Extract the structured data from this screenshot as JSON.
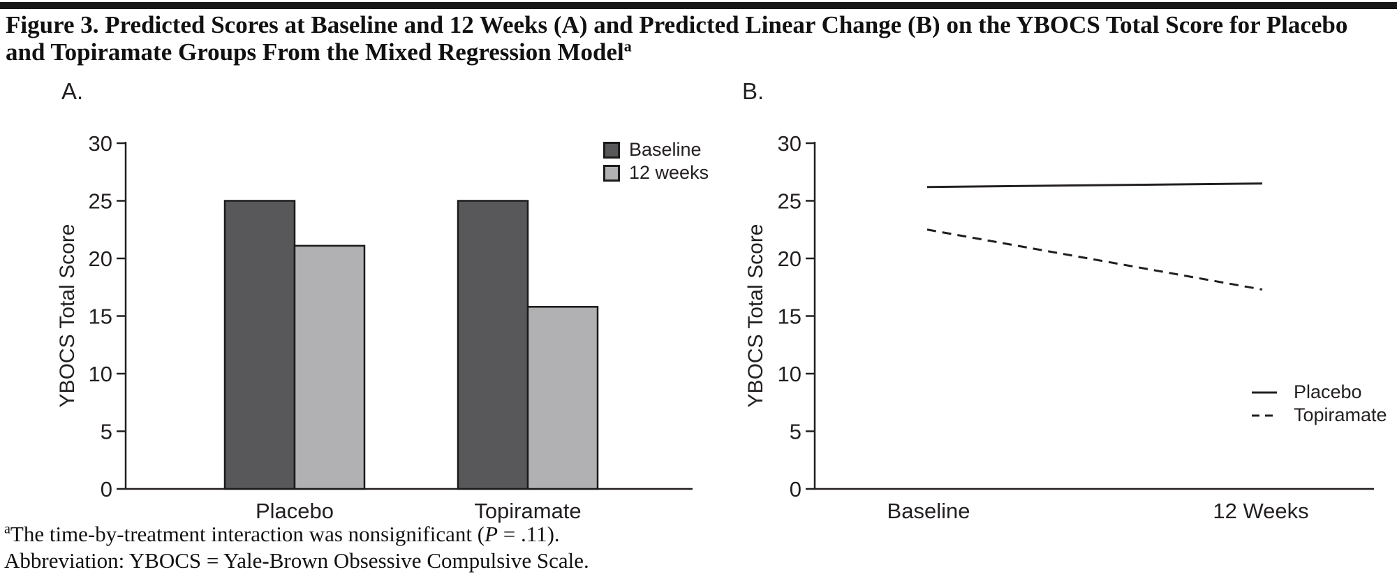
{
  "figure": {
    "title": "Figure 3. Predicted Scores at Baseline and 12 Weeks (A) and Predicted Linear Change (B) on the YBOCS Total Score for Placebo and Topiramate Groups From the Mixed Regression Model",
    "title_superscript": "a"
  },
  "footnotes": {
    "note_marker": "a",
    "note_pre": "The time-by-treatment interaction was nonsignificant (",
    "note_stat": "P",
    "note_post": " = .11).",
    "abbreviation": "Abbreviation: YBOCS = Yale-Brown Obsessive Compulsive Scale."
  },
  "colors": {
    "bar_dark": "#58585a",
    "bar_light": "#b1b1b3",
    "ink": "#231f20"
  },
  "chart_data": [
    {
      "panel_label": "A.",
      "type": "bar",
      "title": "",
      "categories": [
        "Placebo",
        "Topiramate"
      ],
      "series": [
        {
          "name": "Baseline",
          "values": [
            25.0,
            25.0
          ],
          "color": "#58585a"
        },
        {
          "name": "12 weeks",
          "values": [
            21.1,
            15.8
          ],
          "color": "#b1b1b3"
        }
      ],
      "xlabel": "",
      "ylabel": "YBOCS Total Score",
      "ylim": [
        0,
        30
      ],
      "yticks": [
        30,
        25,
        20,
        15,
        10,
        5,
        0
      ],
      "grid": false,
      "legend_position": "top-right"
    },
    {
      "panel_label": "B.",
      "type": "line",
      "title": "",
      "categories": [
        "Baseline",
        "12 Weeks"
      ],
      "series": [
        {
          "name": "Placebo",
          "values": [
            26.2,
            26.5
          ],
          "style": "solid"
        },
        {
          "name": "Topiramate",
          "values": [
            22.5,
            17.3
          ],
          "style": "dashed"
        }
      ],
      "xlabel": "",
      "ylabel": "YBOCS Total Score",
      "ylim": [
        0,
        30
      ],
      "yticks": [
        30,
        25,
        20,
        15,
        10,
        5,
        0
      ],
      "grid": false,
      "legend_position": "right-middle"
    }
  ]
}
